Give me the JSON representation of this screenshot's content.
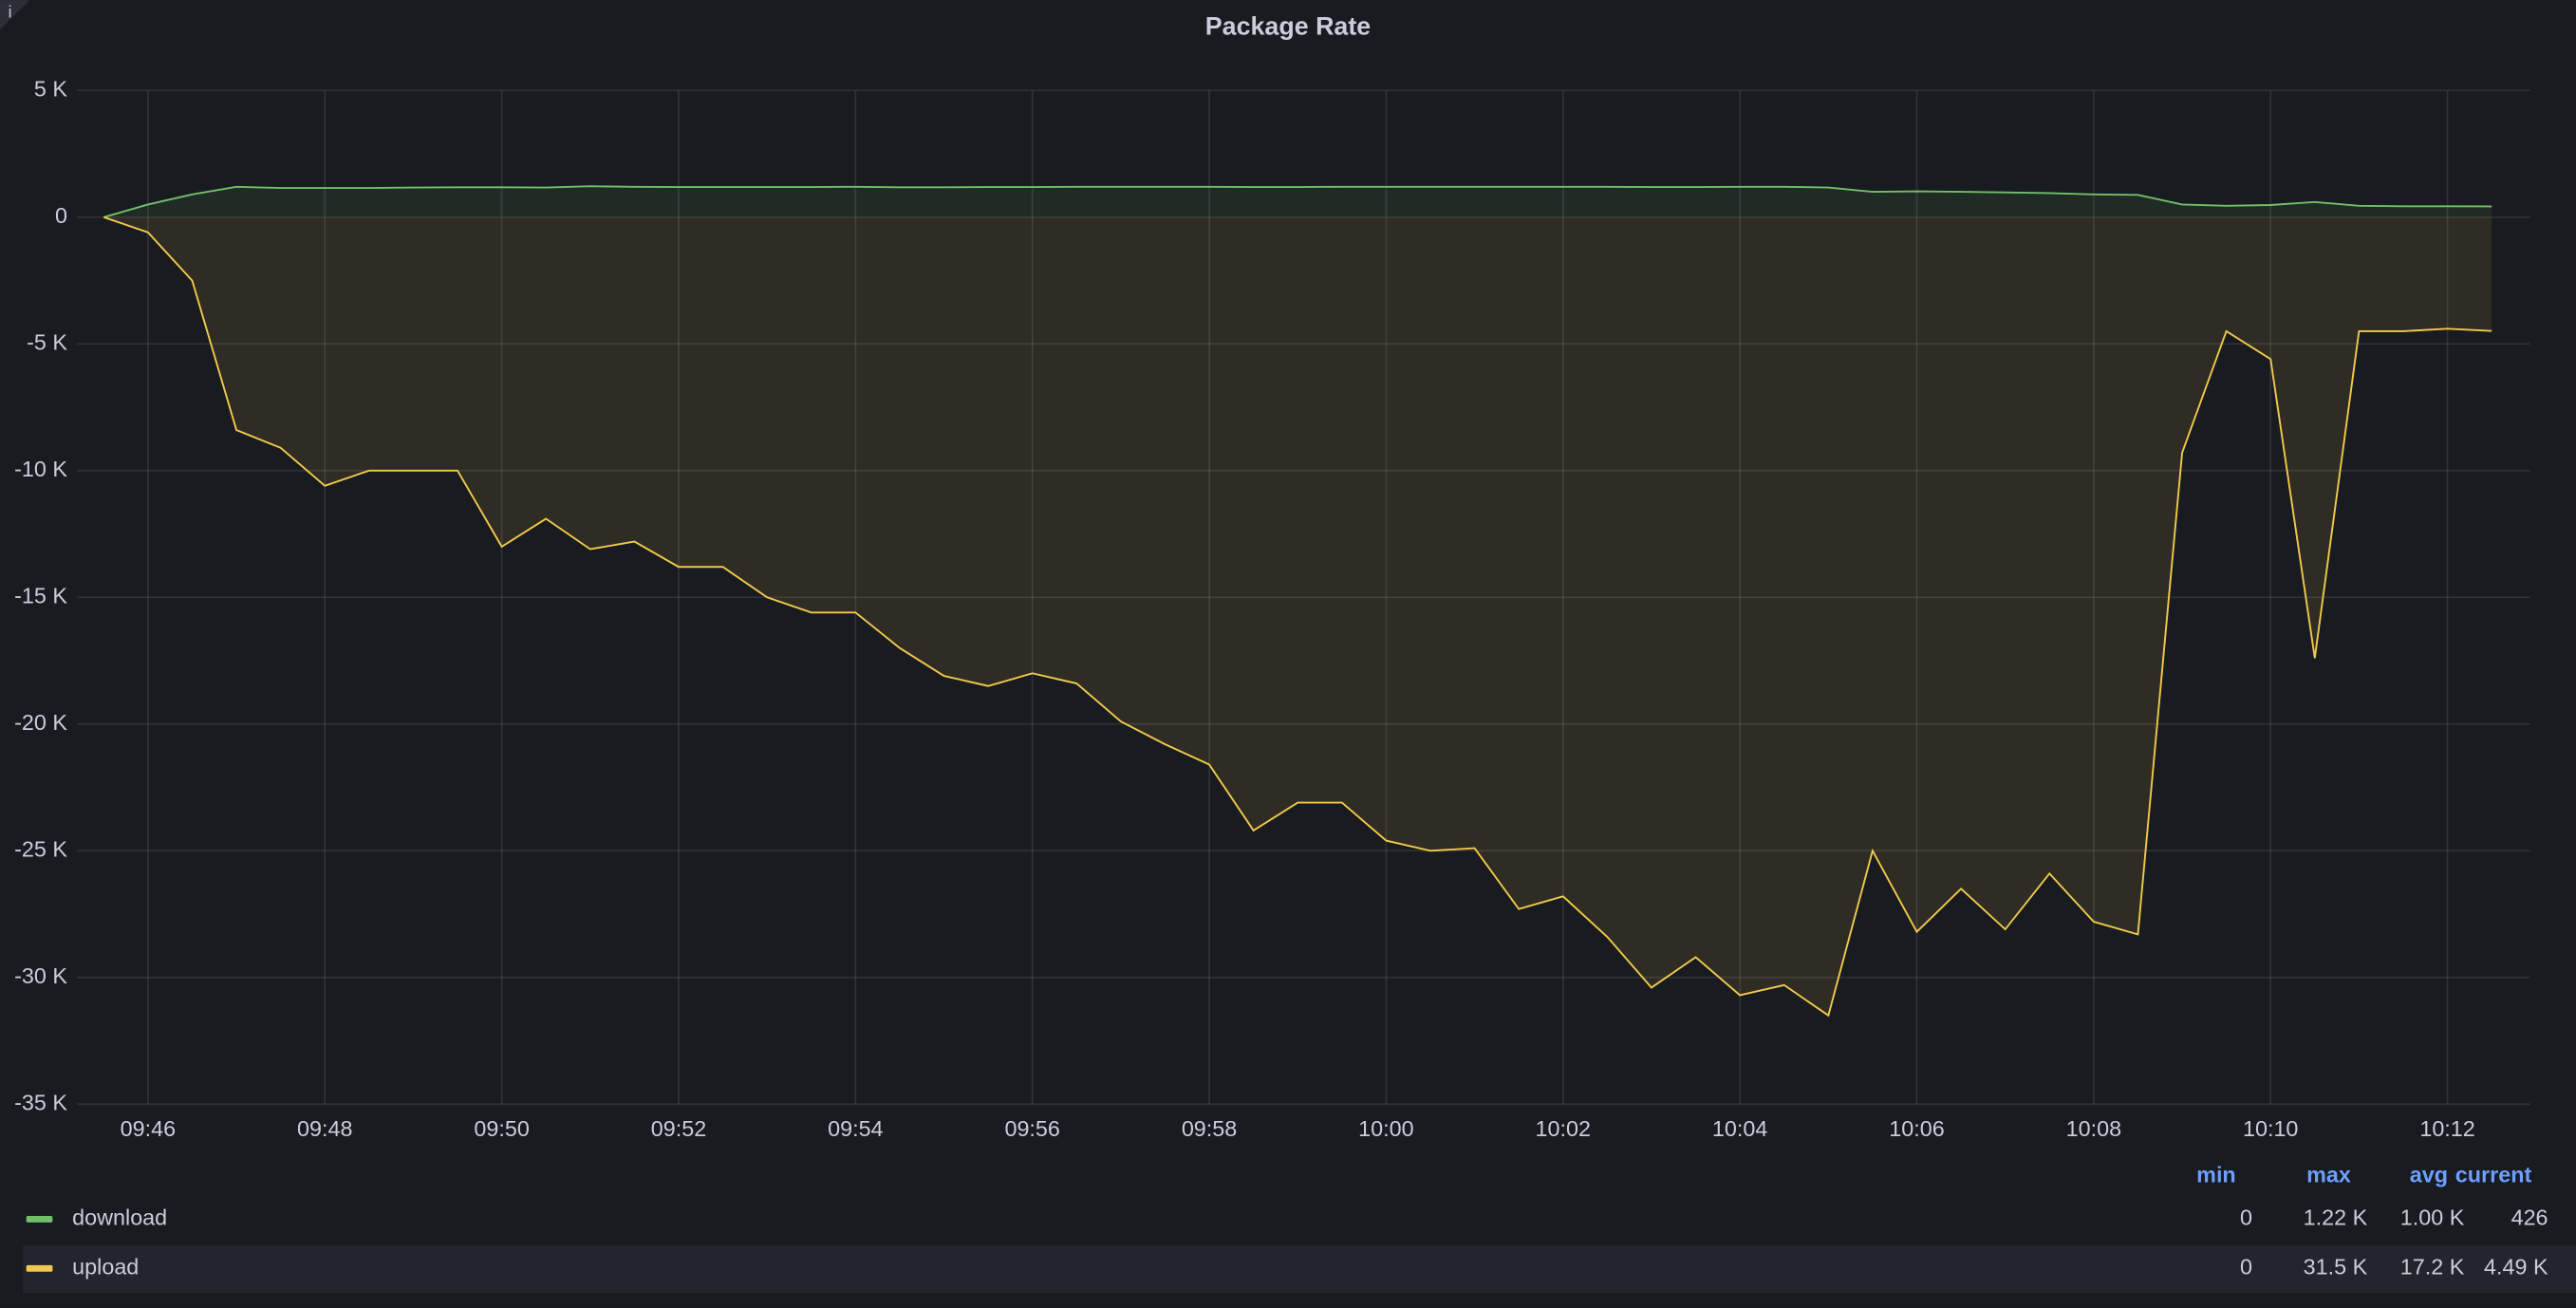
{
  "info_marker": "i",
  "chart_data": {
    "type": "line",
    "title": "Package Rate",
    "x": [
      "09:45:30",
      "09:46:00",
      "09:46:30",
      "09:47:00",
      "09:47:30",
      "09:48:00",
      "09:48:30",
      "09:49:00",
      "09:49:30",
      "09:50:00",
      "09:50:30",
      "09:51:00",
      "09:51:30",
      "09:52:00",
      "09:52:30",
      "09:53:00",
      "09:53:30",
      "09:54:00",
      "09:54:30",
      "09:55:00",
      "09:55:30",
      "09:56:00",
      "09:56:30",
      "09:57:00",
      "09:57:30",
      "09:58:00",
      "09:58:30",
      "09:59:00",
      "09:59:30",
      "10:00:00",
      "10:00:30",
      "10:01:00",
      "10:01:30",
      "10:02:00",
      "10:02:30",
      "10:03:00",
      "10:03:30",
      "10:04:00",
      "10:04:30",
      "10:05:00",
      "10:05:30",
      "10:06:00",
      "10:06:30",
      "10:07:00",
      "10:07:30",
      "10:08:00",
      "10:08:30",
      "10:09:00",
      "10:09:30",
      "10:10:00",
      "10:10:30",
      "10:11:00",
      "10:11:30",
      "10:12:00",
      "10:12:30"
    ],
    "series": [
      {
        "name": "download",
        "color": "#73bf69",
        "stats": [
          "0",
          "1.22 K",
          "1.00 K",
          "426"
        ],
        "values": [
          0,
          500,
          900,
          1200,
          1150,
          1150,
          1150,
          1170,
          1180,
          1180,
          1170,
          1220,
          1200,
          1190,
          1190,
          1190,
          1190,
          1200,
          1180,
          1180,
          1190,
          1190,
          1200,
          1200,
          1200,
          1200,
          1190,
          1190,
          1200,
          1200,
          1200,
          1200,
          1200,
          1200,
          1200,
          1190,
          1190,
          1200,
          1200,
          1170,
          1000,
          1020,
          1000,
          980,
          950,
          900,
          880,
          500,
          450,
          480,
          600,
          450,
          430,
          430,
          426
        ]
      },
      {
        "name": "upload",
        "color": "#f2c94c",
        "stats": [
          "0",
          "31.5 K",
          "17.2 K",
          "4.49 K"
        ],
        "values": [
          0,
          -600,
          -2500,
          -8400,
          -9100,
          -10600,
          -10000,
          -10000,
          -10000,
          -13000,
          -11900,
          -13100,
          -12800,
          -13800,
          -13800,
          -15000,
          -15600,
          -15600,
          -17000,
          -18100,
          -18500,
          -18000,
          -18400,
          -19900,
          -20800,
          -21600,
          -24200,
          -23100,
          -23100,
          -24600,
          -25000,
          -24900,
          -27300,
          -26800,
          -28400,
          -30400,
          -29200,
          -30700,
          -30300,
          -31500,
          -25000,
          -28200,
          -26500,
          -28100,
          -25900,
          -27800,
          -28300,
          -9300,
          -4500,
          -5600,
          -17400,
          -4500,
          -4500,
          -4400,
          -4490
        ]
      }
    ],
    "xlim": [
      "09:45:12",
      "10:12:56"
    ],
    "xticks": [
      "09:46",
      "09:48",
      "09:50",
      "09:52",
      "09:54",
      "09:56",
      "09:58",
      "10:00",
      "10:02",
      "10:04",
      "10:06",
      "10:08",
      "10:10",
      "10:12"
    ],
    "ylim": [
      -35000,
      5000
    ],
    "yticks": [
      {
        "value": -35000,
        "label": "-35 K"
      },
      {
        "value": -30000,
        "label": "-30 K"
      },
      {
        "value": -25000,
        "label": "-25 K"
      },
      {
        "value": -20000,
        "label": "-20 K"
      },
      {
        "value": -15000,
        "label": "-15 K"
      },
      {
        "value": -10000,
        "label": "-10 K"
      },
      {
        "value": -5000,
        "label": "-5 K"
      },
      {
        "value": 0,
        "label": "0"
      },
      {
        "value": 5000,
        "label": "5 K"
      }
    ],
    "grid": true,
    "fill_area": true,
    "legend_columns": [
      "min",
      "max",
      "avg",
      "current"
    ]
  }
}
